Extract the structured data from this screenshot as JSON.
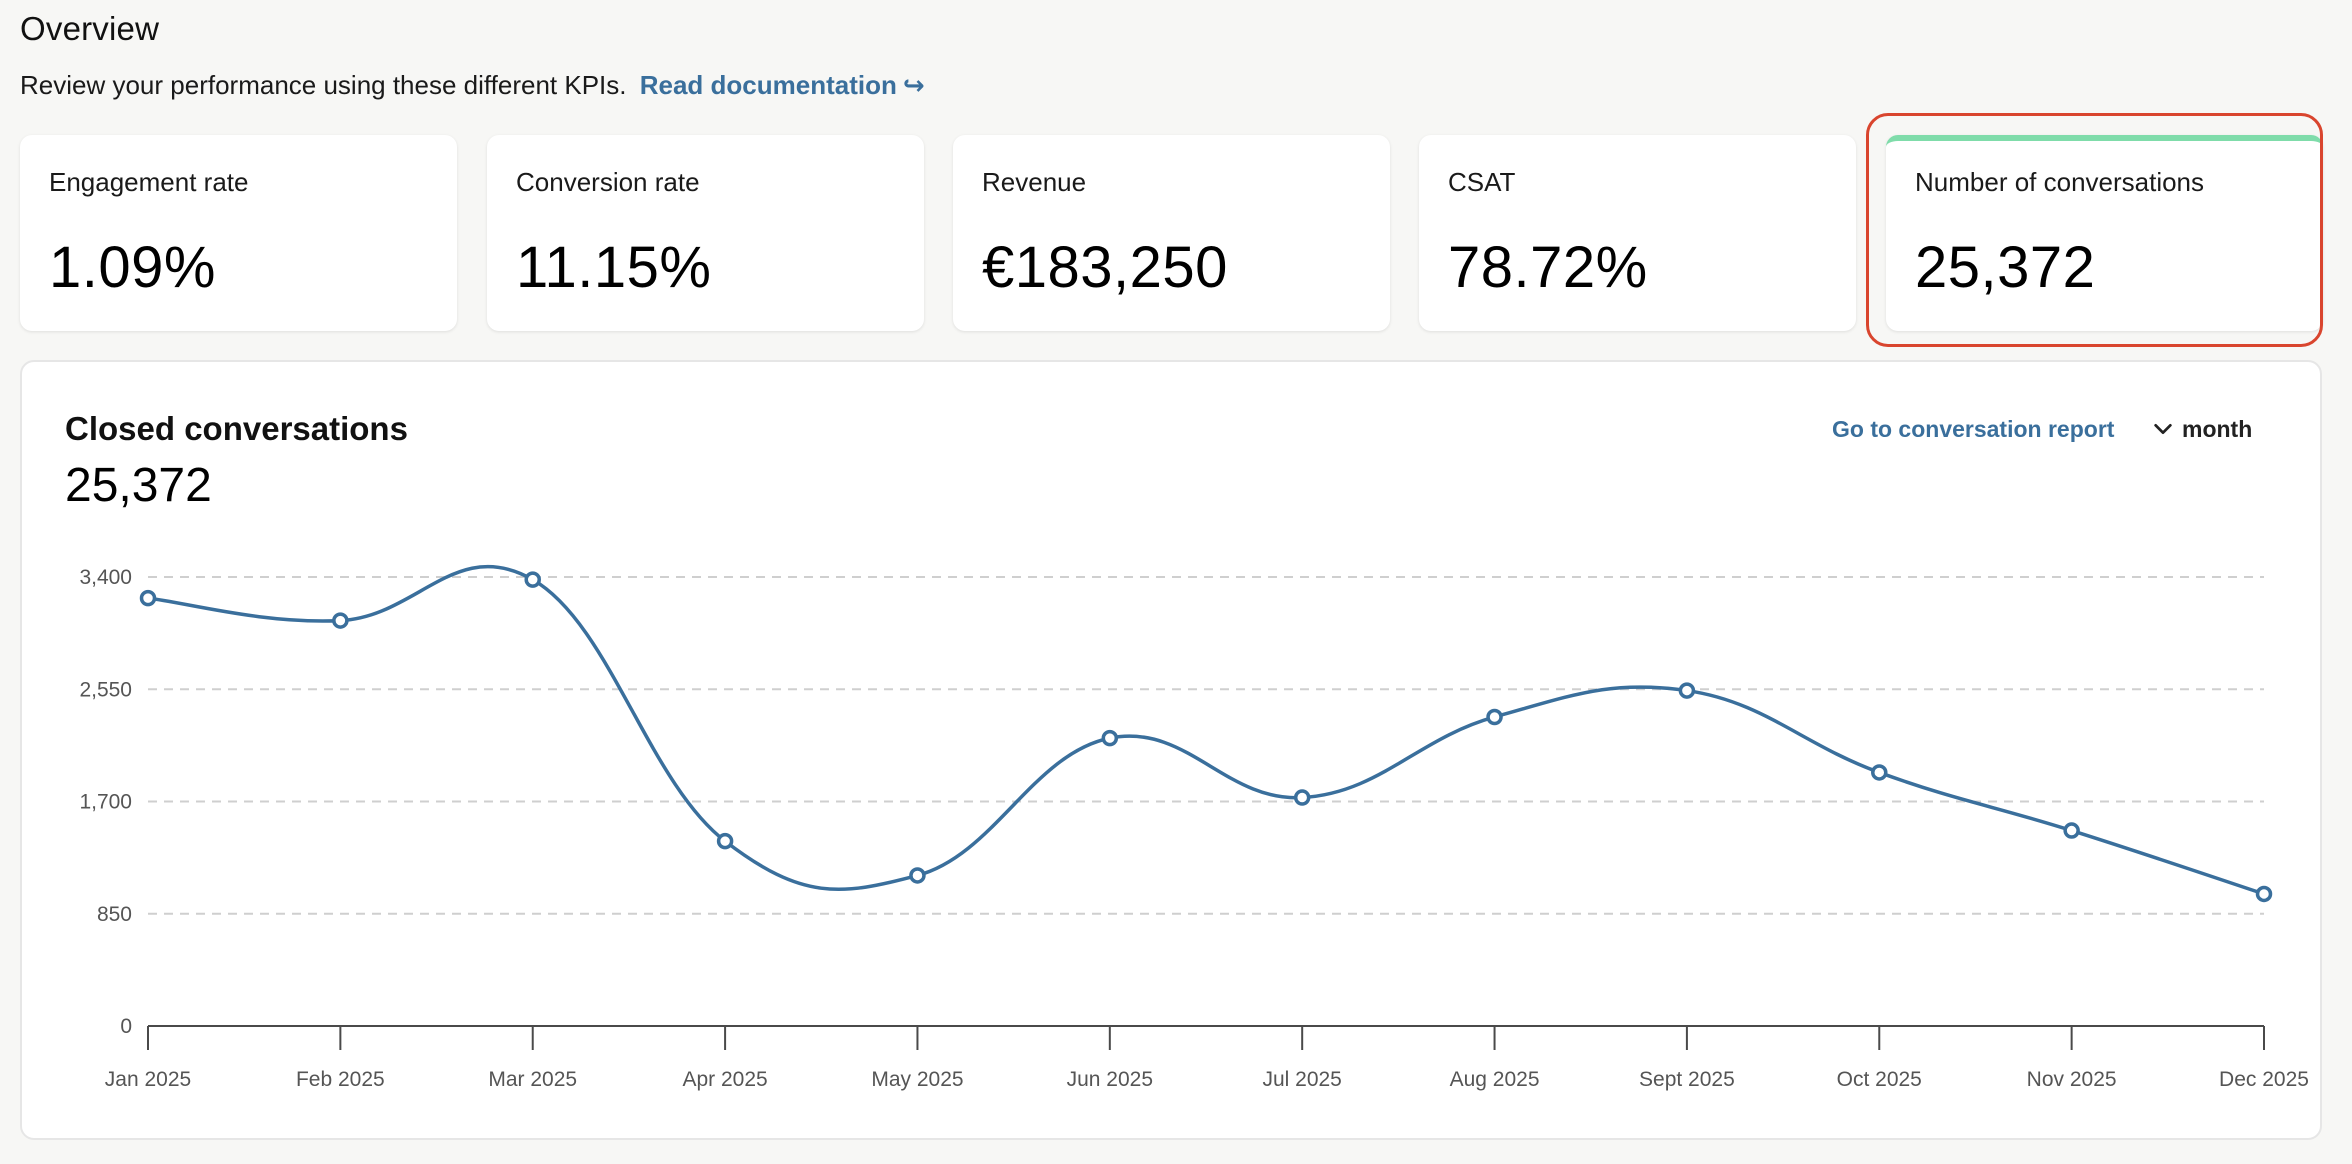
{
  "header": {
    "title": "Overview",
    "subtitle": "Review your performance using these different KPIs.",
    "doc_link_label": "Read documentation",
    "doc_link_icon": "external-arrow-icon"
  },
  "kpis": [
    {
      "label": "Engagement rate",
      "value": "1.09%"
    },
    {
      "label": "Conversion rate",
      "value": "11.15%"
    },
    {
      "label": "Revenue",
      "value": "€183,250"
    },
    {
      "label": "CSAT",
      "value": "78.72%"
    },
    {
      "label": "Number of conversations",
      "value": "25,372",
      "selected": true
    }
  ],
  "colors": {
    "accent_link": "#3a6f9c",
    "selected_card_top": "#7fdcaa",
    "highlight_outline": "#d9452e",
    "series": "#3a6f9c"
  },
  "chart_card": {
    "title": "Closed conversations",
    "total": "25,372",
    "report_link_label": "Go to conversation report",
    "period_label": "month",
    "period_icon": "chevron-down-icon"
  },
  "chart_data": {
    "type": "line",
    "title": "Closed conversations",
    "xlabel": "",
    "ylabel": "",
    "categories": [
      "Jan 2025",
      "Feb 2025",
      "Mar 2025",
      "Apr 2025",
      "May 2025",
      "Jun 2025",
      "Jul 2025",
      "Aug 2025",
      "Sept 2025",
      "Oct 2025",
      "Nov 2025",
      "Dec 2025"
    ],
    "series": [
      {
        "values": [
          3240,
          3070,
          3380,
          1400,
          1140,
          2180,
          1730,
          2340,
          2540,
          1920,
          1480,
          1000
        ]
      }
    ],
    "ylim": [
      0,
      3400
    ],
    "yticks": [
      0,
      850,
      1700,
      2550,
      3400
    ],
    "ytick_labels": [
      "0",
      "850",
      "1,700",
      "2,550",
      "3,400"
    ],
    "grid": "horizontal dashed",
    "legend": "none",
    "smooth": true
  }
}
